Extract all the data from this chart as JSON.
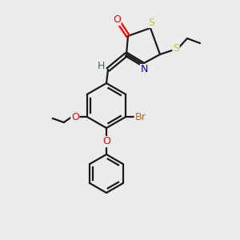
{
  "bg_color": "#ebebeb",
  "bond_color": "#1a1a1a",
  "atom_colors": {
    "O": "#ff0000",
    "N": "#0000ff",
    "S": "#cccc00",
    "Br": "#cc6600",
    "H": "#008888",
    "C": "#1a1a1a"
  },
  "fig_width": 3.0,
  "fig_height": 3.0,
  "dpi": 100
}
